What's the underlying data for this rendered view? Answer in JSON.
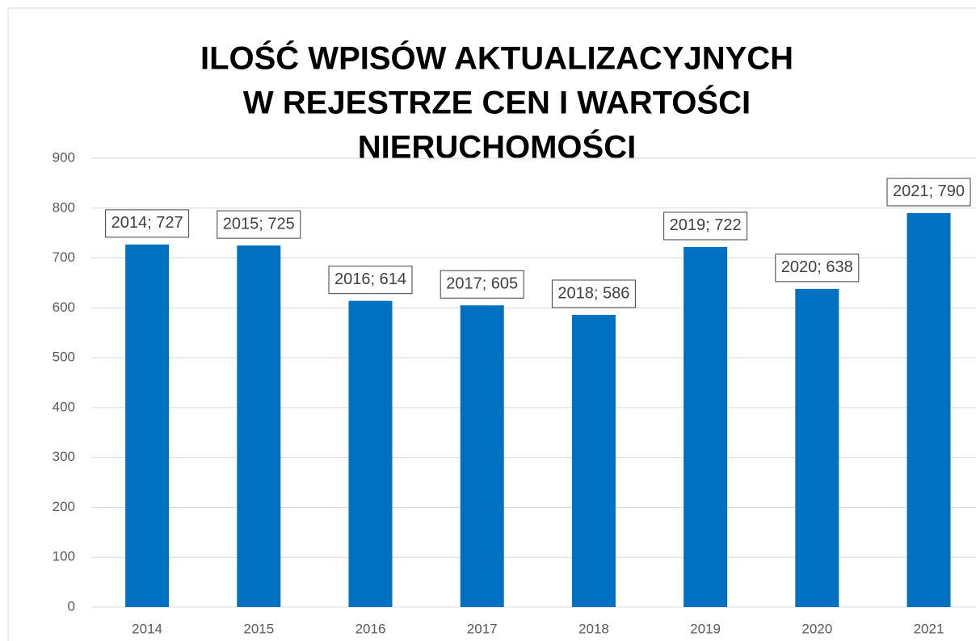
{
  "chart_data": {
    "type": "bar",
    "title": [
      "ILOŚĆ WPISÓW AKTUALIZACYJNYCH",
      "W REJESTRZE CEN I WARTOŚCI",
      "NIERUCHOMOŚCI"
    ],
    "categories": [
      "2014",
      "2015",
      "2016",
      "2017",
      "2018",
      "2019",
      "2020",
      "2021"
    ],
    "values": [
      727,
      725,
      614,
      605,
      586,
      722,
      638,
      790
    ],
    "value_labels": [
      "2014; 727",
      "2015; 725",
      "2016; 614",
      "2017; 605",
      "2018; 586",
      "2019; 722",
      "2020; 638",
      "2021; 790"
    ],
    "color": "#0070c0",
    "ylim": [
      0,
      900
    ],
    "yticks": [
      0,
      100,
      200,
      300,
      400,
      500,
      600,
      700,
      800,
      900
    ],
    "grid": true
  }
}
